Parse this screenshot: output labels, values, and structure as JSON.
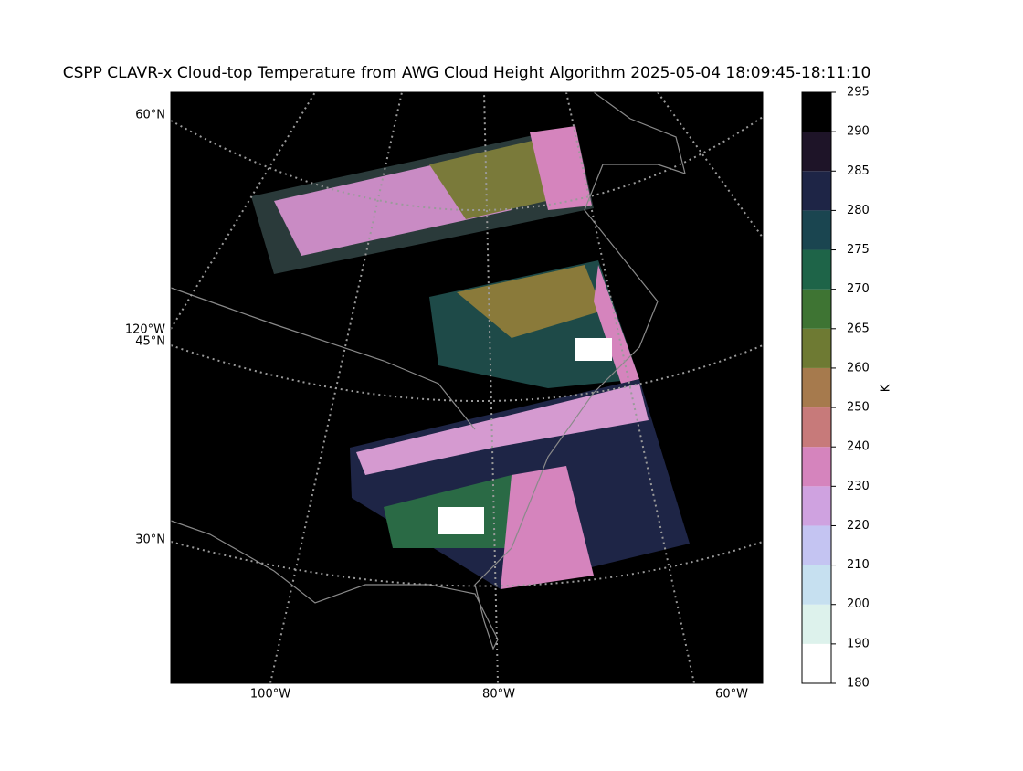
{
  "title": "CSPP CLAVR-x Cloud-top Temperature from AWG Cloud Height Algorithm 2025-05-04 18:09:45-18:11:10",
  "map": {
    "lat_labels": [
      "60°N",
      "45°N",
      "30°N"
    ],
    "lon_labels": [
      "120°W",
      "100°W",
      "80°W",
      "60°W"
    ]
  },
  "colorbar": {
    "label": "K",
    "ticks": [
      180,
      190,
      200,
      210,
      220,
      230,
      240,
      250,
      260,
      265,
      270,
      275,
      280,
      285,
      290,
      295
    ],
    "colors": [
      "#ffffff",
      "#ddf2ec",
      "#c6e0f0",
      "#c4c4f2",
      "#cfa2e0",
      "#d584bd",
      "#c77a7a",
      "#a67a4d",
      "#6e7a33",
      "#3e7433",
      "#1e6448",
      "#1a4550",
      "#1e2546",
      "#1e1428",
      "#000000"
    ]
  }
}
